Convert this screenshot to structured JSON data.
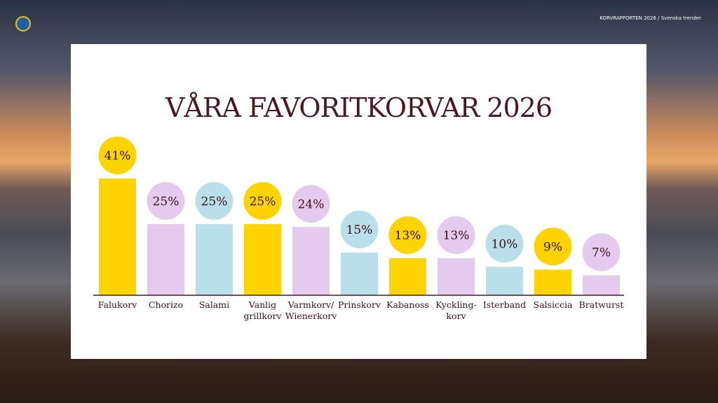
{
  "header": {
    "report": "KORVRAPPORTEN 2026 / Svenska trender"
  },
  "chart_data": {
    "type": "bar",
    "title": "VÅRA FAVORITKORVAR 2026",
    "categories": [
      "Falukorv",
      "Chorizo",
      "Salami",
      "Vanlig\ngrillkorv",
      "Varmkorv/\nWienerkorv",
      "Prinskorv",
      "Kabanoss",
      "Kyckling-\nkorv",
      "Isterband",
      "Salsiccia",
      "Bratwurst"
    ],
    "values": [
      41,
      25,
      25,
      25,
      24,
      15,
      13,
      13,
      10,
      9,
      7
    ],
    "value_labels": [
      "41%",
      "25%",
      "25%",
      "25%",
      "24%",
      "15%",
      "13%",
      "13%",
      "10%",
      "9%",
      "7%"
    ],
    "colors": [
      "#fdd400",
      "#e4cbee",
      "#b9dfea",
      "#fdd400",
      "#e4cbee",
      "#b9dfea",
      "#fdd400",
      "#e4cbee",
      "#b9dfea",
      "#fdd400",
      "#e4cbee"
    ]
  }
}
